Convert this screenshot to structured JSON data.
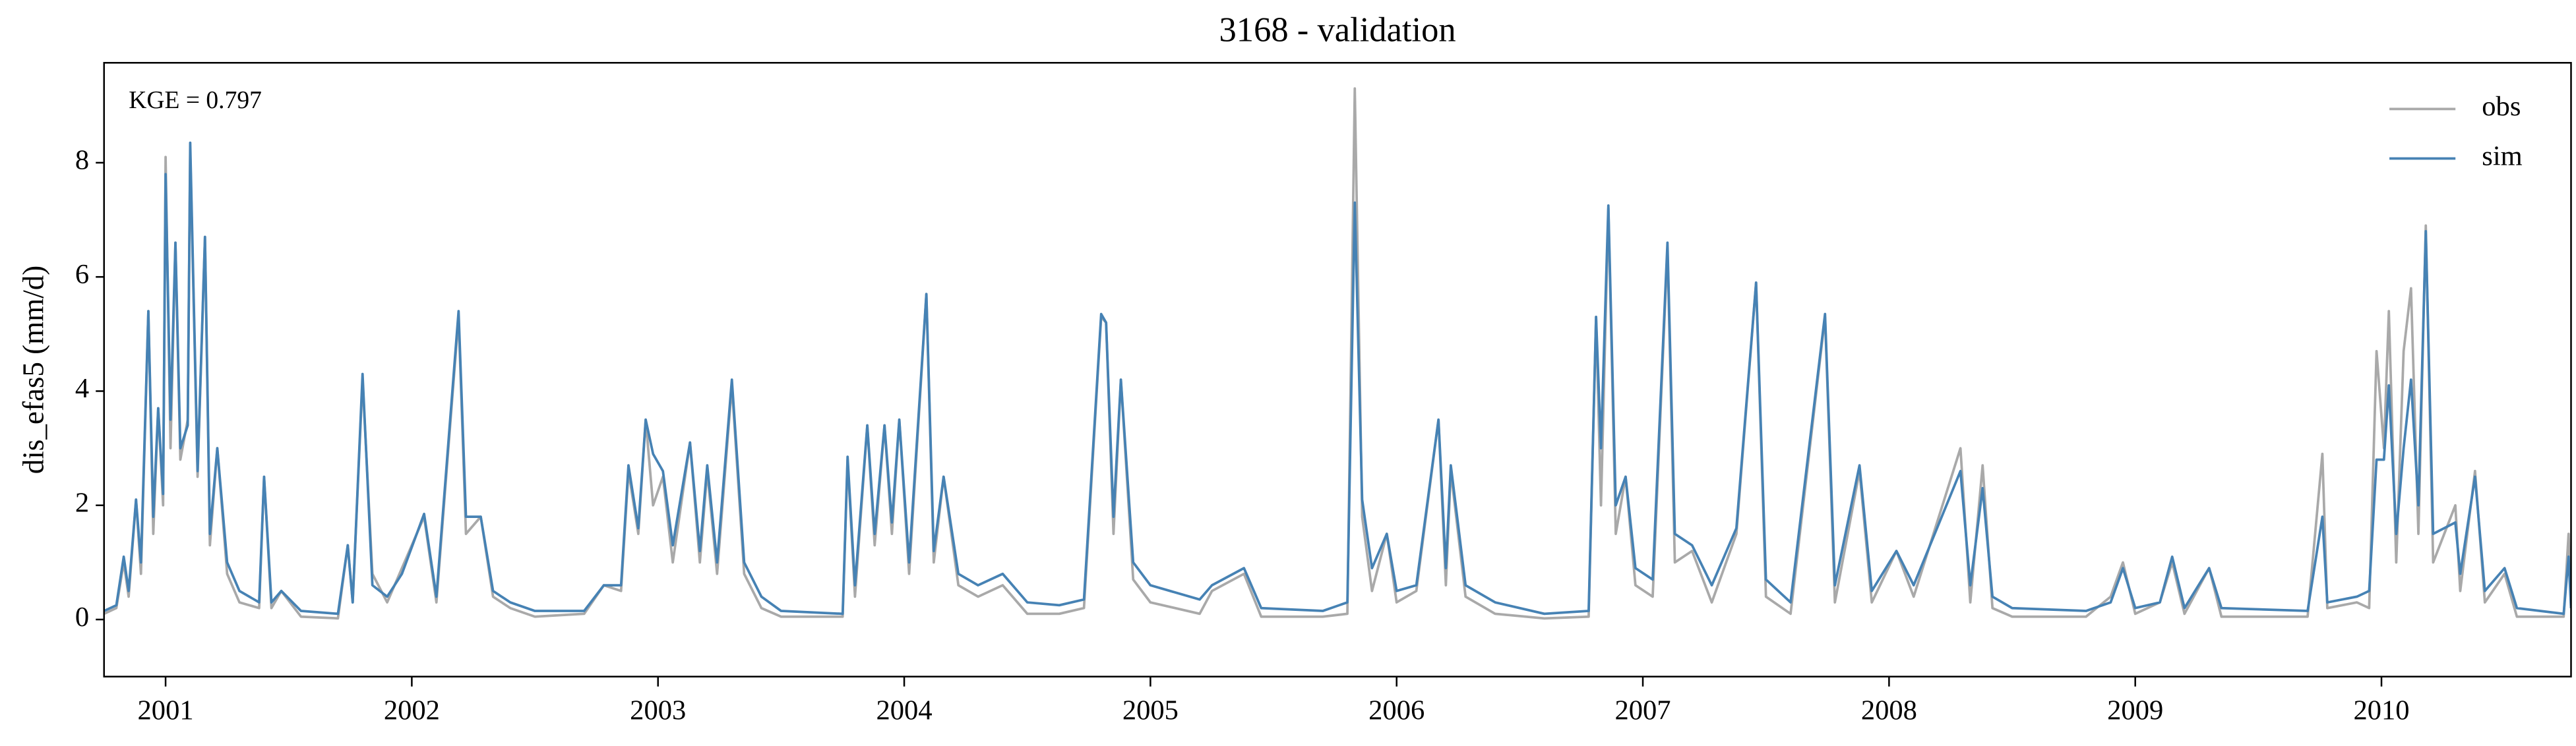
{
  "chart_data": {
    "type": "line",
    "title": "3168 - validation",
    "ylabel": "dis_efas5 (mm/d)",
    "annotation": "KGE = 0.797",
    "xlim": [
      2000.75,
      2010.77
    ],
    "ylim": [
      -1,
      9.75
    ],
    "xticks": [
      2001,
      2002,
      2003,
      2004,
      2005,
      2006,
      2007,
      2008,
      2009,
      2010
    ],
    "yticks": [
      0,
      2,
      4,
      6,
      8
    ],
    "grid": false,
    "legend": "upper right",
    "x": [
      2000.75,
      2000.8,
      2000.83,
      2000.85,
      2000.88,
      2000.9,
      2000.93,
      2000.95,
      2000.97,
      2000.99,
      2001.0,
      2001.02,
      2001.04,
      2001.06,
      2001.09,
      2001.1,
      2001.13,
      2001.16,
      2001.18,
      2001.21,
      2001.25,
      2001.3,
      2001.38,
      2001.4,
      2001.43,
      2001.47,
      2001.55,
      2001.7,
      2001.74,
      2001.76,
      2001.8,
      2001.84,
      2001.9,
      2001.96,
      2002.05,
      2002.1,
      2002.19,
      2002.22,
      2002.28,
      2002.33,
      2002.4,
      2002.5,
      2002.7,
      2002.78,
      2002.85,
      2002.88,
      2002.92,
      2002.95,
      2002.98,
      2003.02,
      2003.06,
      2003.13,
      2003.17,
      2003.2,
      2003.24,
      2003.3,
      2003.35,
      2003.42,
      2003.5,
      2003.75,
      2003.77,
      2003.8,
      2003.85,
      2003.88,
      2003.92,
      2003.95,
      2003.98,
      2004.02,
      2004.09,
      2004.12,
      2004.16,
      2004.22,
      2004.3,
      2004.4,
      2004.5,
      2004.63,
      2004.73,
      2004.8,
      2004.82,
      2004.85,
      2004.88,
      2004.93,
      2005.0,
      2005.2,
      2005.25,
      2005.38,
      2005.45,
      2005.7,
      2005.8,
      2005.83,
      2005.86,
      2005.9,
      2005.96,
      2006.0,
      2006.08,
      2006.17,
      2006.2,
      2006.22,
      2006.28,
      2006.4,
      2006.6,
      2006.78,
      2006.81,
      2006.83,
      2006.86,
      2006.89,
      2006.93,
      2006.97,
      2007.04,
      2007.1,
      2007.13,
      2007.2,
      2007.28,
      2007.38,
      2007.46,
      2007.5,
      2007.6,
      2007.74,
      2007.78,
      2007.88,
      2007.93,
      2008.03,
      2008.1,
      2008.29,
      2008.33,
      2008.38,
      2008.42,
      2008.5,
      2008.8,
      2008.9,
      2008.95,
      2009.0,
      2009.1,
      2009.15,
      2009.2,
      2009.3,
      2009.35,
      2009.7,
      2009.76,
      2009.78,
      2009.9,
      2009.95,
      2009.98,
      2010.01,
      2010.03,
      2010.06,
      2010.09,
      2010.12,
      2010.15,
      2010.18,
      2010.21,
      2010.3,
      2010.32,
      2010.38,
      2010.42,
      2010.5,
      2010.55,
      2010.74,
      2010.76,
      2010.77
    ],
    "series": [
      {
        "name": "obs",
        "color": "#a9a9a9",
        "values": [
          0.1,
          0.2,
          1.0,
          0.4,
          2.1,
          0.8,
          5.4,
          1.5,
          3.7,
          2.0,
          8.1,
          3.0,
          6.6,
          2.8,
          3.5,
          8.2,
          2.5,
          6.7,
          1.3,
          3.0,
          0.8,
          0.3,
          0.2,
          2.5,
          0.2,
          0.5,
          0.05,
          0.02,
          1.3,
          0.3,
          4.2,
          0.8,
          0.3,
          0.9,
          1.8,
          0.3,
          5.3,
          1.5,
          1.8,
          0.4,
          0.2,
          0.05,
          0.1,
          0.6,
          0.5,
          2.6,
          1.5,
          3.5,
          2.0,
          2.5,
          1.0,
          3.1,
          1.0,
          2.6,
          0.8,
          4.1,
          0.8,
          0.2,
          0.05,
          0.05,
          2.8,
          0.4,
          3.4,
          1.3,
          3.4,
          1.5,
          3.5,
          0.8,
          5.7,
          1.0,
          2.5,
          0.6,
          0.4,
          0.6,
          0.1,
          0.1,
          0.2,
          5.3,
          5.2,
          1.5,
          4.2,
          0.7,
          0.3,
          0.1,
          0.5,
          0.8,
          0.05,
          0.05,
          0.1,
          9.3,
          1.8,
          0.5,
          1.5,
          0.3,
          0.5,
          3.5,
          0.6,
          2.6,
          0.4,
          0.1,
          0.02,
          0.05,
          5.3,
          2.0,
          7.2,
          1.5,
          2.5,
          0.6,
          0.4,
          6.5,
          1.0,
          1.2,
          0.3,
          1.5,
          5.9,
          0.4,
          0.1,
          5.3,
          0.3,
          2.6,
          0.3,
          1.2,
          0.4,
          3.0,
          0.3,
          2.7,
          0.2,
          0.05,
          0.05,
          0.4,
          1.0,
          0.1,
          0.3,
          1.0,
          0.1,
          0.9,
          0.05,
          0.05,
          2.9,
          0.2,
          0.3,
          0.2,
          4.7,
          3.0,
          5.4,
          1.0,
          4.7,
          5.8,
          1.5,
          6.9,
          1.0,
          2.0,
          0.5,
          2.6,
          0.3,
          0.8,
          0.05,
          0.05,
          1.5,
          0.2
        ]
      },
      {
        "name": "sim",
        "color": "#4682b4",
        "values": [
          0.15,
          0.25,
          1.1,
          0.5,
          2.1,
          1.0,
          5.4,
          1.8,
          3.7,
          2.2,
          7.8,
          3.5,
          6.6,
          3.0,
          3.4,
          8.35,
          2.6,
          6.7,
          1.5,
          3.0,
          1.0,
          0.5,
          0.3,
          2.5,
          0.3,
          0.5,
          0.15,
          0.1,
          1.3,
          0.3,
          4.3,
          0.6,
          0.4,
          0.8,
          1.85,
          0.4,
          5.4,
          1.8,
          1.8,
          0.5,
          0.3,
          0.15,
          0.15,
          0.6,
          0.6,
          2.7,
          1.6,
          3.5,
          2.9,
          2.6,
          1.3,
          3.1,
          1.2,
          2.7,
          1.0,
          4.2,
          1.0,
          0.4,
          0.15,
          0.1,
          2.85,
          0.6,
          3.4,
          1.5,
          3.4,
          1.7,
          3.5,
          1.0,
          5.7,
          1.2,
          2.5,
          0.8,
          0.6,
          0.8,
          0.3,
          0.25,
          0.35,
          5.35,
          5.2,
          1.8,
          4.2,
          1.0,
          0.6,
          0.35,
          0.6,
          0.9,
          0.2,
          0.15,
          0.3,
          7.3,
          2.1,
          0.9,
          1.5,
          0.5,
          0.6,
          3.5,
          0.9,
          2.7,
          0.6,
          0.3,
          0.1,
          0.15,
          5.3,
          3.0,
          7.25,
          2.0,
          2.5,
          0.9,
          0.7,
          6.6,
          1.5,
          1.3,
          0.6,
          1.6,
          5.9,
          0.7,
          0.3,
          5.35,
          0.6,
          2.7,
          0.5,
          1.2,
          0.6,
          2.6,
          0.6,
          2.3,
          0.4,
          0.2,
          0.15,
          0.3,
          0.9,
          0.2,
          0.3,
          1.1,
          0.2,
          0.9,
          0.2,
          0.15,
          1.8,
          0.3,
          0.4,
          0.5,
          2.8,
          2.8,
          4.1,
          1.5,
          3.0,
          4.2,
          2.0,
          6.8,
          1.5,
          1.7,
          0.8,
          2.5,
          0.5,
          0.9,
          0.2,
          0.1,
          1.1,
          0.2
        ]
      }
    ]
  }
}
